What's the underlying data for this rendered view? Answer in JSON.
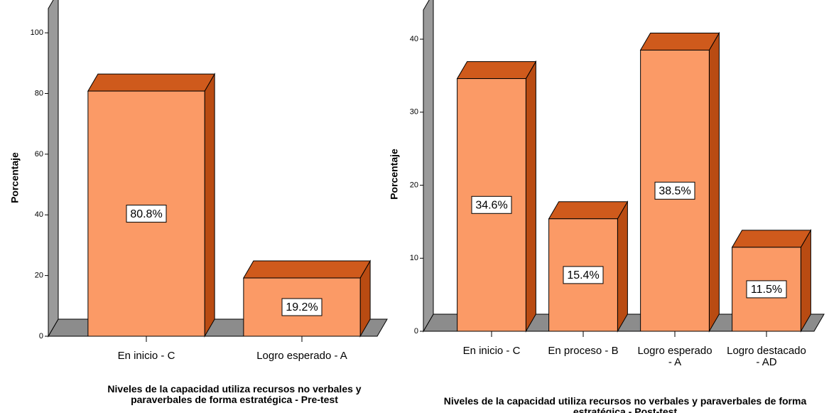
{
  "chart_data": [
    {
      "type": "bar",
      "categories": [
        "En inicio - C",
        "Logro esperado - A"
      ],
      "values": [
        80.8,
        19.2
      ],
      "value_labels": [
        "80.8%",
        "19.2%"
      ],
      "ylim": [
        0,
        108
      ],
      "yticks": [
        0,
        20,
        40,
        60,
        80,
        100
      ],
      "ylabel": "Porcentaje",
      "xlabel": "Niveles de la capacidad utiliza recursos no verbales y paraverbales de forma estratégica - Pre-test",
      "color": "#fb9a66"
    },
    {
      "type": "bar",
      "categories": [
        "En inicio - C",
        "En proceso - B",
        "Logro esperado - A",
        "Logro destacado - AD"
      ],
      "values": [
        34.6,
        15.4,
        38.5,
        11.5
      ],
      "value_labels": [
        "34.6%",
        "15.4%",
        "38.5%",
        "11.5%"
      ],
      "ylim": [
        0,
        44
      ],
      "yticks": [
        0,
        10,
        20,
        30,
        40
      ],
      "ylabel": "Porcentaje",
      "xlabel": "Niveles de la capacidad utiliza recursos no verbales y paraverbales de forma estratégica - Post-test",
      "color": "#fb9a66"
    }
  ]
}
